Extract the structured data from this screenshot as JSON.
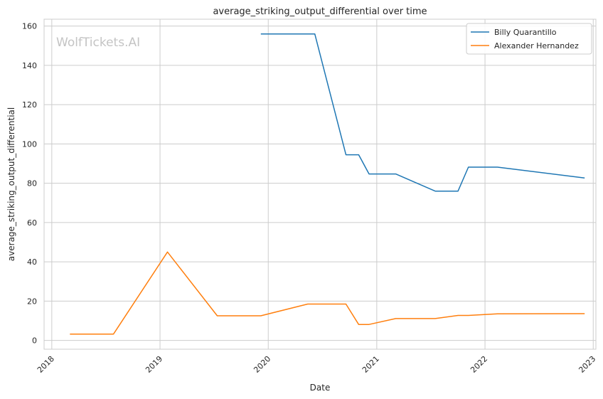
{
  "chart_data": {
    "type": "line",
    "title": "average_striking_output_differential over time",
    "xlabel": "Date",
    "ylabel": "average_striking_output_differential",
    "watermark": "WolfTickets.AI",
    "xlim": [
      "2017-12-06",
      "2023-01-10"
    ],
    "ylim": [
      -4.5,
      163.5
    ],
    "x_ticks": [
      "2018-01-01",
      "2019-01-01",
      "2020-01-01",
      "2021-01-01",
      "2022-01-01",
      "2023-01-01"
    ],
    "x_tick_labels": [
      "2018",
      "2019",
      "2020",
      "2021",
      "2022",
      "2023"
    ],
    "y_ticks": [
      0,
      20,
      40,
      60,
      80,
      100,
      120,
      140,
      160
    ],
    "y_tick_labels": [
      "0",
      "20",
      "40",
      "60",
      "80",
      "100",
      "120",
      "140",
      "160"
    ],
    "grid": true,
    "legend_position": "top-right",
    "series": [
      {
        "name": "Billy Quarantillo",
        "color": "#1f77b4",
        "points": [
          [
            "2019-12-07",
            156
          ],
          [
            "2020-06-06",
            156
          ],
          [
            "2020-09-19",
            94.5
          ],
          [
            "2020-11-01",
            94.5
          ],
          [
            "2020-12-06",
            84.7
          ],
          [
            "2021-03-06",
            84.7
          ],
          [
            "2021-07-17",
            76
          ],
          [
            "2021-10-02",
            76
          ],
          [
            "2021-11-06",
            88.2
          ],
          [
            "2022-02-12",
            88.2
          ],
          [
            "2022-12-03",
            82.7
          ]
        ]
      },
      {
        "name": "Alexander Hernandez",
        "color": "#ff7f0e",
        "points": [
          [
            "2018-03-03",
            3.2
          ],
          [
            "2018-07-28",
            3.2
          ],
          [
            "2019-01-26",
            45
          ],
          [
            "2019-07-13",
            12.5
          ],
          [
            "2019-12-07",
            12.5
          ],
          [
            "2020-05-13",
            18.5
          ],
          [
            "2020-09-19",
            18.5
          ],
          [
            "2020-11-01",
            8.1
          ],
          [
            "2020-12-06",
            8.1
          ],
          [
            "2021-03-06",
            11.1
          ],
          [
            "2021-07-17",
            11.1
          ],
          [
            "2021-10-02",
            12.7
          ],
          [
            "2021-11-06",
            12.7
          ],
          [
            "2022-02-12",
            13.5
          ],
          [
            "2022-12-03",
            13.6
          ]
        ]
      }
    ]
  }
}
